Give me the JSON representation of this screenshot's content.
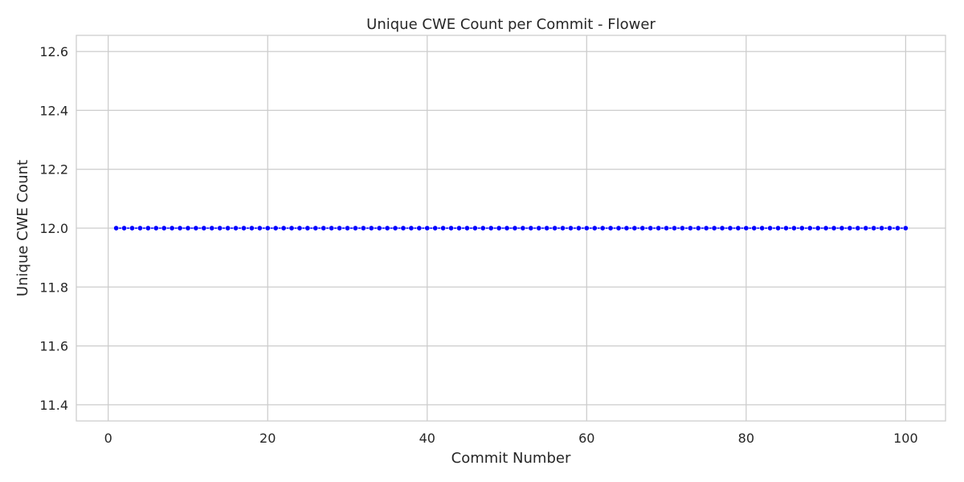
{
  "chart_data": {
    "type": "line",
    "title": "Unique CWE Count per Commit - Flower",
    "xlabel": "Commit Number",
    "ylabel": "Unique CWE Count",
    "xlim": [
      -4,
      105
    ],
    "ylim": [
      11.345,
      12.655
    ],
    "xticks": [
      0,
      20,
      40,
      60,
      80,
      100
    ],
    "yticks": [
      11.4,
      11.6,
      11.8,
      12.0,
      12.2,
      12.4,
      12.6
    ],
    "xtick_labels": [
      "0",
      "20",
      "40",
      "60",
      "80",
      "100"
    ],
    "ytick_labels": [
      "11.4",
      "11.6",
      "11.8",
      "12.0",
      "12.2",
      "12.4",
      "12.6"
    ],
    "grid": true,
    "marker": "circle",
    "series": [
      {
        "color": "#0000ff",
        "x": [
          1,
          2,
          3,
          4,
          5,
          6,
          7,
          8,
          9,
          10,
          11,
          12,
          13,
          14,
          15,
          16,
          17,
          18,
          19,
          20,
          21,
          22,
          23,
          24,
          25,
          26,
          27,
          28,
          29,
          30,
          31,
          32,
          33,
          34,
          35,
          36,
          37,
          38,
          39,
          40,
          41,
          42,
          43,
          44,
          45,
          46,
          47,
          48,
          49,
          50,
          51,
          52,
          53,
          54,
          55,
          56,
          57,
          58,
          59,
          60,
          61,
          62,
          63,
          64,
          65,
          66,
          67,
          68,
          69,
          70,
          71,
          72,
          73,
          74,
          75,
          76,
          77,
          78,
          79,
          80,
          81,
          82,
          83,
          84,
          85,
          86,
          87,
          88,
          89,
          90,
          91,
          92,
          93,
          94,
          95,
          96,
          97,
          98,
          99,
          100
        ],
        "values": [
          12,
          12,
          12,
          12,
          12,
          12,
          12,
          12,
          12,
          12,
          12,
          12,
          12,
          12,
          12,
          12,
          12,
          12,
          12,
          12,
          12,
          12,
          12,
          12,
          12,
          12,
          12,
          12,
          12,
          12,
          12,
          12,
          12,
          12,
          12,
          12,
          12,
          12,
          12,
          12,
          12,
          12,
          12,
          12,
          12,
          12,
          12,
          12,
          12,
          12,
          12,
          12,
          12,
          12,
          12,
          12,
          12,
          12,
          12,
          12,
          12,
          12,
          12,
          12,
          12,
          12,
          12,
          12,
          12,
          12,
          12,
          12,
          12,
          12,
          12,
          12,
          12,
          12,
          12,
          12,
          12,
          12,
          12,
          12,
          12,
          12,
          12,
          12,
          12,
          12,
          12,
          12,
          12,
          12,
          12,
          12,
          12,
          12,
          12,
          12
        ]
      }
    ],
    "colors": {
      "grid": "#cccccc",
      "axes_edge": "#cccccc",
      "background": "#ffffff",
      "text": "#262626"
    }
  }
}
